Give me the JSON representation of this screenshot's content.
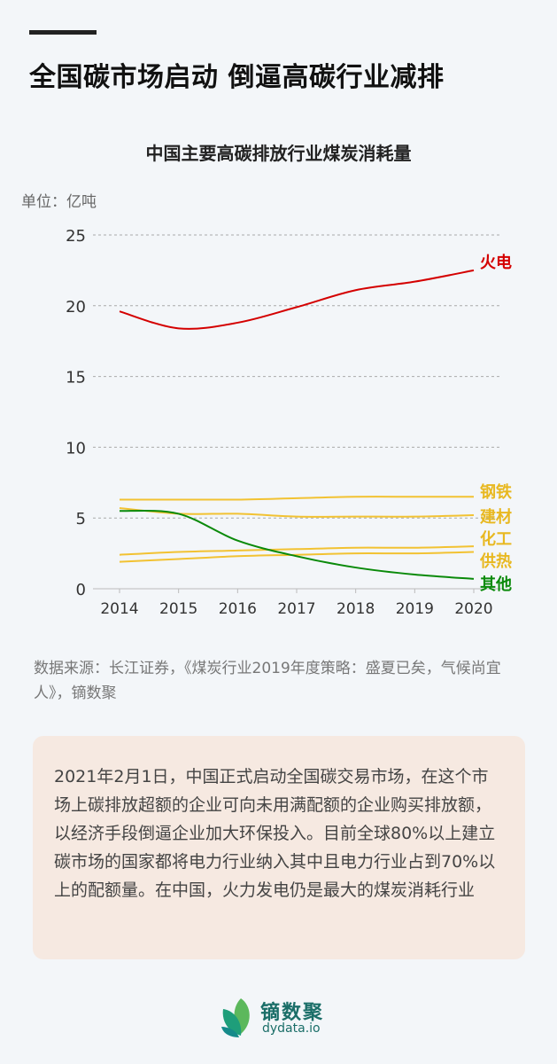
{
  "title": "全国碳市场启动 倒逼高碳行业减排",
  "chart_data": {
    "type": "line",
    "title": "中国主要高碳排放行业煤炭消耗量",
    "unit": "单位：亿吨",
    "x": [
      "2014",
      "2015",
      "2016",
      "2017",
      "2018",
      "2019",
      "2020"
    ],
    "ylim": [
      0,
      25
    ],
    "yticks": [
      0,
      5,
      10,
      15,
      20,
      25
    ],
    "grid": true,
    "series": [
      {
        "name": "火电",
        "color": "#d40000",
        "values": [
          19.6,
          18.4,
          18.8,
          19.9,
          21.1,
          21.7,
          22.5
        ]
      },
      {
        "name": "钢铁",
        "color": "#f2c232",
        "values": [
          6.3,
          6.3,
          6.3,
          6.4,
          6.5,
          6.5,
          6.5
        ]
      },
      {
        "name": "建材",
        "color": "#f2c232",
        "values": [
          5.7,
          5.3,
          5.3,
          5.1,
          5.1,
          5.1,
          5.2
        ]
      },
      {
        "name": "化工",
        "color": "#f2c232",
        "values": [
          2.4,
          2.6,
          2.7,
          2.8,
          2.9,
          2.9,
          3.0
        ]
      },
      {
        "name": "供热",
        "color": "#f2c232",
        "values": [
          1.9,
          2.1,
          2.3,
          2.4,
          2.5,
          2.5,
          2.6
        ]
      },
      {
        "name": "其他",
        "color": "#0a8a0a",
        "values": [
          5.5,
          5.3,
          3.4,
          2.3,
          1.5,
          1.0,
          0.7
        ]
      }
    ]
  },
  "source": "数据来源：长江证券，《煤炭行业2019年度策略：盛夏已矣，气候尚宜人》，镝数聚",
  "description": "2021年2月1日，中国正式启动全国碳交易市场，在这个市场上碳排放超额的企业可向未用满配额的企业购买排放额，以经济手段倒逼企业加大环保投入。目前全球80%以上建立碳市场的国家都将电力行业纳入其中且电力行业占到70%以上的配额量。在中国，火力发电仍是最大的煤炭消耗行业",
  "logo": {
    "name": "镝数聚",
    "url": "dydata.io"
  }
}
